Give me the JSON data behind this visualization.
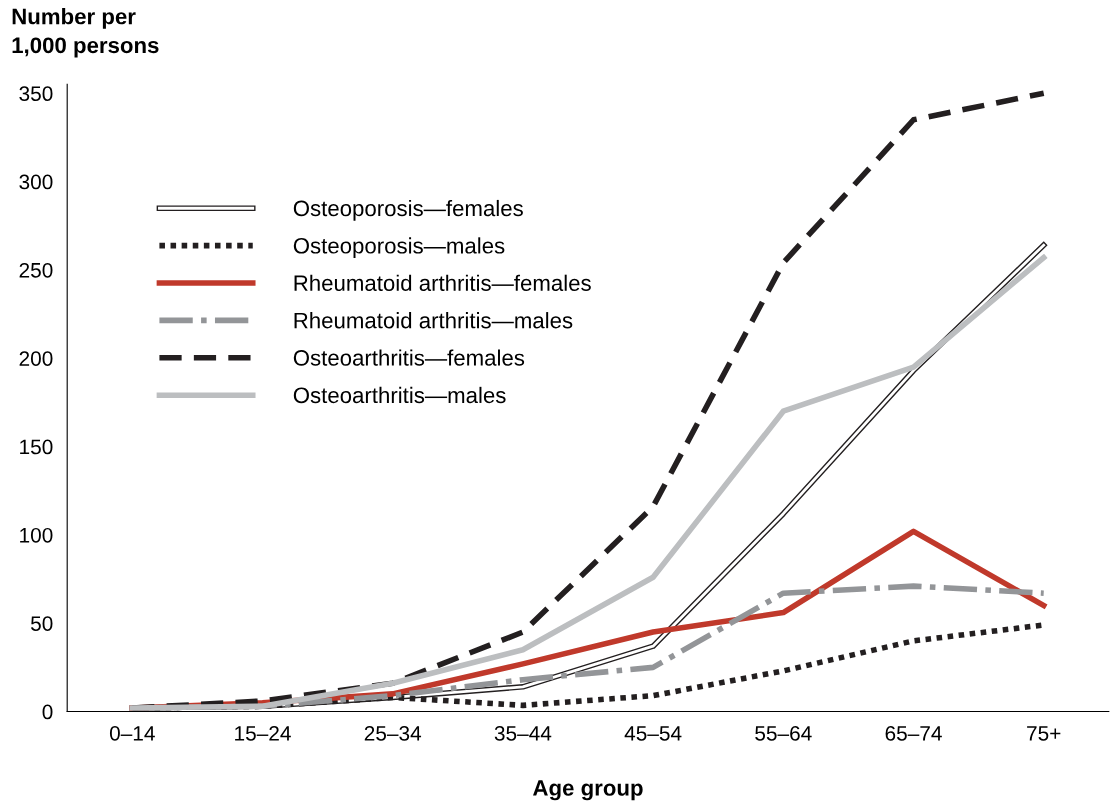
{
  "chart_data": {
    "type": "line",
    "ylabel": "Number per\n1,000 persons",
    "xlabel": "Age group",
    "categories": [
      "0–14",
      "15–24",
      "25–34",
      "35–44",
      "45–54",
      "55–64",
      "65–74",
      "75+"
    ],
    "ylim": [
      0,
      355
    ],
    "yticks": [
      0,
      50,
      100,
      150,
      200,
      250,
      300,
      350
    ],
    "grid": false,
    "legend": "top left",
    "series": [
      {
        "name": "Osteoporosis—females",
        "color": "#231f20",
        "line_style": "solid",
        "values": [
          2,
          3,
          8,
          14,
          37,
          112,
          193,
          264
        ]
      },
      {
        "name": "Osteoporosis—males",
        "color": "#231f20",
        "line_style": "dotted",
        "values": [
          2,
          3,
          8,
          3.5,
          9,
          23,
          40,
          49
        ]
      },
      {
        "name": "Rheumatoid arthritis—females",
        "color": "#c0392b",
        "line_style": "solid",
        "values": [
          2,
          5,
          10,
          27,
          45,
          56,
          102,
          60
        ]
      },
      {
        "name": "Rheumatoid arthritis—males",
        "color": "#939598",
        "line_style": "dashdot",
        "values": [
          2,
          3,
          9,
          18,
          25,
          67,
          71,
          67
        ]
      },
      {
        "name": "Osteoarthritis—females",
        "color": "#231f20",
        "line_style": "dashed",
        "values": [
          2,
          6,
          16,
          45,
          116,
          254,
          335,
          350
        ]
      },
      {
        "name": "Osteoarthritis—males",
        "color": "#bcbec0",
        "line_style": "solid",
        "values": [
          2,
          3,
          16,
          35,
          76,
          170,
          195,
          257
        ]
      }
    ]
  }
}
